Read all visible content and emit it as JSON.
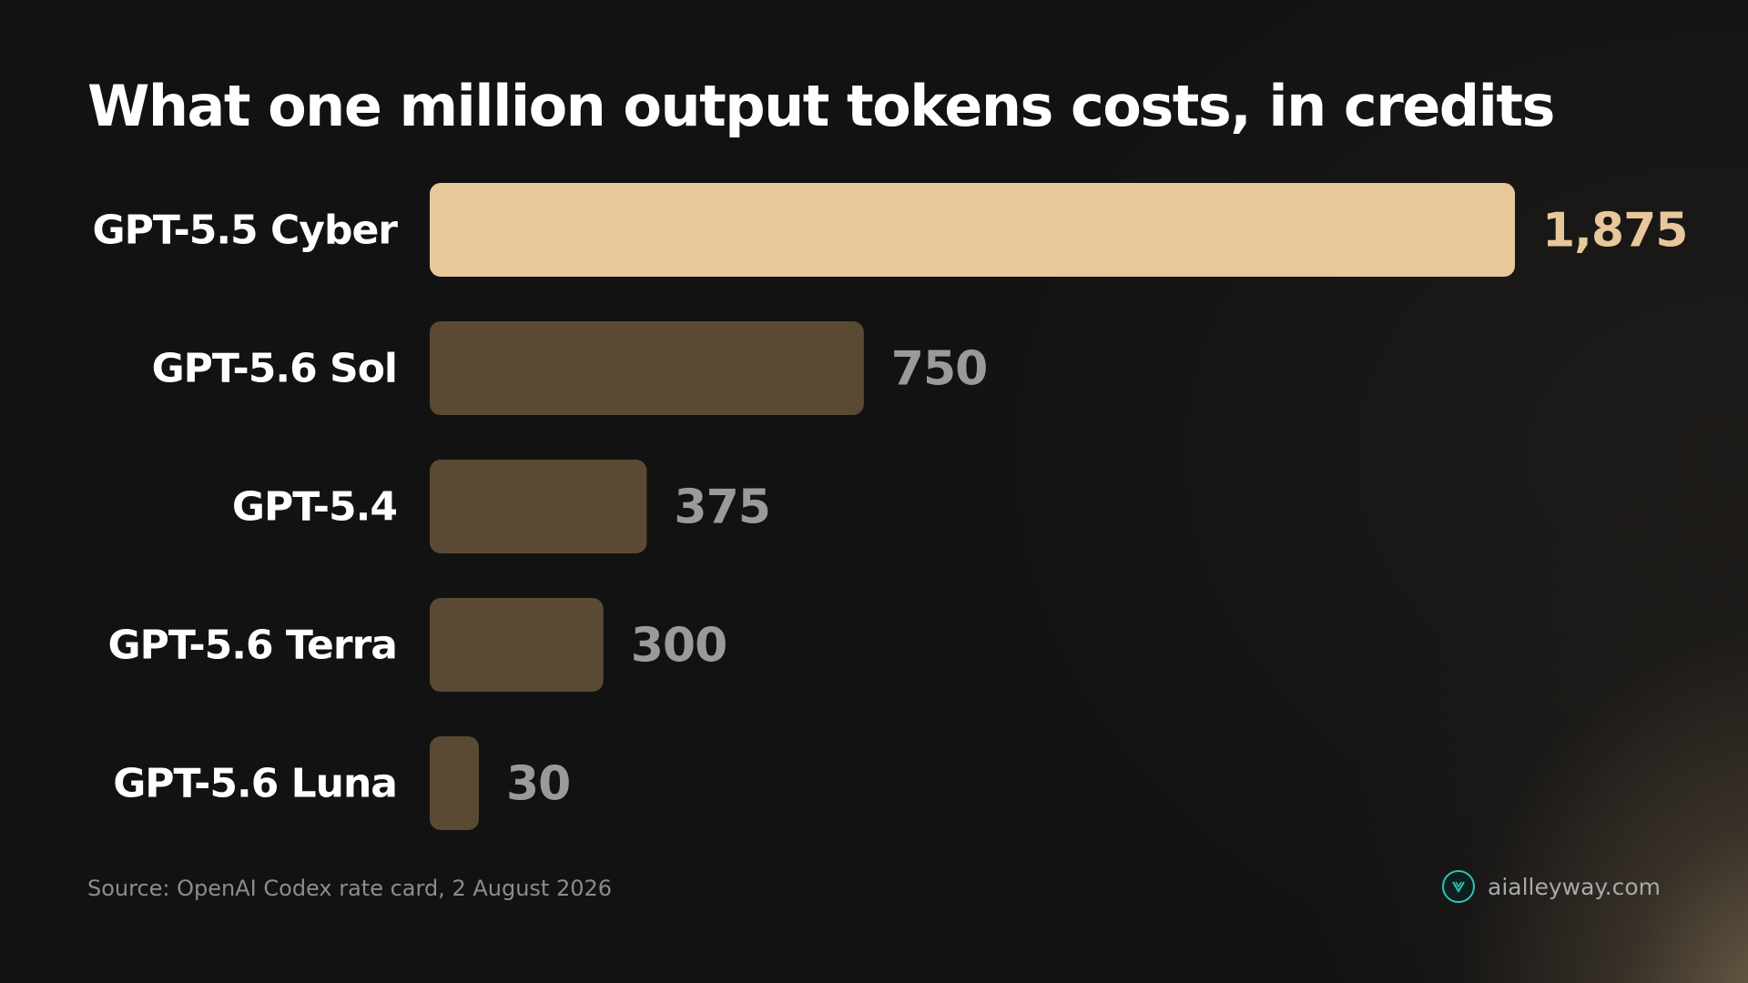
{
  "chart_data": {
    "type": "bar",
    "orientation": "horizontal",
    "title": "What one million output tokens costs, in credits",
    "categories": [
      "GPT-5.5 Cyber",
      "GPT-5.6 Sol",
      "GPT-5.4",
      "GPT-5.6 Terra",
      "GPT-5.6 Luna"
    ],
    "values": [
      1875,
      750,
      375,
      300,
      30
    ],
    "value_labels": [
      "1,875",
      "750",
      "375",
      "300",
      "30"
    ],
    "highlight_index": 0,
    "xlim": [
      0,
      1875
    ],
    "grid": false,
    "colors": {
      "highlight_bar": "#e8c89b",
      "highlight_label": "#e8c89b",
      "bar": "#5b4a33",
      "value_label": "#9a9a9a",
      "category_label": "#ffffff"
    }
  },
  "footer": {
    "source": "Source: OpenAI Codex rate card, 2 August 2026",
    "brand": "aialleyway.com",
    "brand_icon": "aialleyway-logo-icon"
  }
}
